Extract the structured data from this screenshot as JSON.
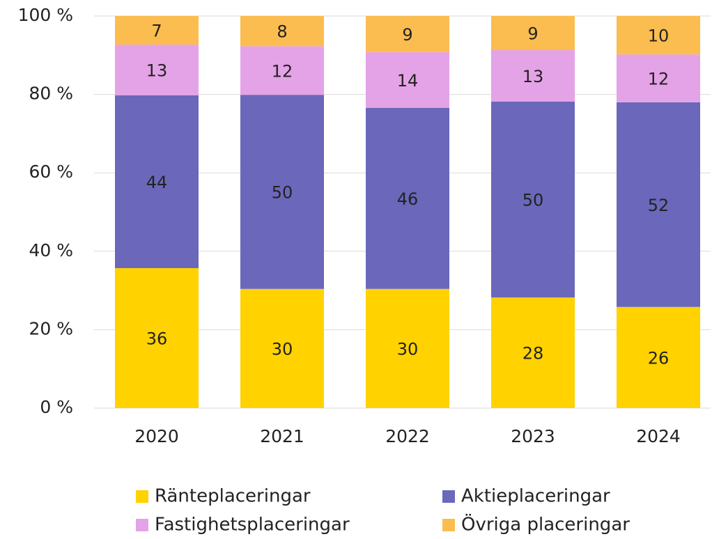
{
  "chart_data": {
    "type": "bar",
    "stacked": true,
    "categories": [
      "2020",
      "2021",
      "2022",
      "2023",
      "2024"
    ],
    "series": [
      {
        "name": "Ränteplaceringar",
        "color": "#ffd200",
        "values": [
          35.7,
          30.4,
          30.4,
          28.2,
          25.8
        ],
        "value_labels": [
          "36",
          "30",
          "30",
          "28",
          "26"
        ]
      },
      {
        "name": "Aktieplaceringar",
        "color": "#6b67bb",
        "values": [
          44.1,
          49.5,
          46.2,
          50.0,
          52.2
        ],
        "value_labels": [
          "44",
          "50",
          "46",
          "50",
          "52"
        ]
      },
      {
        "name": "Fastighetsplaceringar",
        "color": "#e4a3e6",
        "values": [
          12.9,
          12.4,
          14.2,
          13.1,
          12.2
        ],
        "value_labels": [
          "13",
          "12",
          "14",
          "13",
          "12"
        ]
      },
      {
        "name": "Övriga placeringar",
        "color": "#fbbd4f",
        "values": [
          7.3,
          7.7,
          9.2,
          8.7,
          9.8
        ],
        "value_labels": [
          "7",
          "8",
          "9",
          "9",
          "10"
        ]
      }
    ],
    "ylim": [
      0,
      100
    ],
    "yticks": [
      {
        "value": 0,
        "label": "0 %"
      },
      {
        "value": 20,
        "label": "20 %"
      },
      {
        "value": 40,
        "label": "40 %"
      },
      {
        "value": 60,
        "label": "60 %"
      },
      {
        "value": 80,
        "label": "80 %"
      },
      {
        "value": 100,
        "label": "100 %"
      }
    ],
    "grid": true,
    "legend": "bottom"
  }
}
